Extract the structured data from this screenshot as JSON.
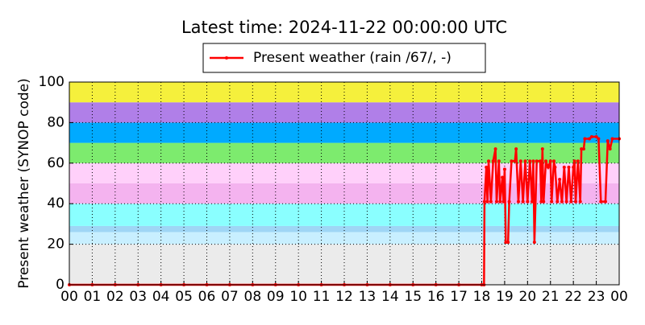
{
  "chart_data": {
    "type": "line",
    "title": "Latest time: 2024-11-22 00:00:00 UTC",
    "y_label": "Present weather (SYNOP code)",
    "xlim": [
      0,
      24
    ],
    "ylim": [
      0,
      100
    ],
    "xticks": [
      {
        "value": 0,
        "label": "00"
      },
      {
        "value": 1,
        "label": "01"
      },
      {
        "value": 2,
        "label": "02"
      },
      {
        "value": 3,
        "label": "03"
      },
      {
        "value": 4,
        "label": "04"
      },
      {
        "value": 5,
        "label": "05"
      },
      {
        "value": 6,
        "label": "06"
      },
      {
        "value": 7,
        "label": "07"
      },
      {
        "value": 8,
        "label": "08"
      },
      {
        "value": 9,
        "label": "09"
      },
      10,
      11,
      12,
      13,
      14,
      15,
      16,
      17,
      18,
      19,
      20,
      21,
      22,
      23,
      {
        "value": 24,
        "label": "00"
      }
    ],
    "yticks": [
      0,
      20,
      40,
      60,
      80,
      100
    ],
    "grid": true,
    "legend": "top",
    "bands": [
      {
        "from": 0,
        "to": 20,
        "color": "#ebebeb"
      },
      {
        "from": 20,
        "to": 26,
        "color": "#c8efff"
      },
      {
        "from": 26,
        "to": 29,
        "color": "#9fd6f5"
      },
      {
        "from": 29,
        "to": 40,
        "color": "#8affff"
      },
      {
        "from": 40,
        "to": 50,
        "color": "#f4b3ef"
      },
      {
        "from": 50,
        "to": 60,
        "color": "#ffd0fa"
      },
      {
        "from": 60,
        "to": 70,
        "color": "#7deb6e"
      },
      {
        "from": 70,
        "to": 80,
        "color": "#00aaff"
      },
      {
        "from": 80,
        "to": 90,
        "color": "#b07fe8"
      },
      {
        "from": 90,
        "to": 100,
        "color": "#f5f03c"
      }
    ],
    "series": [
      {
        "name": "Present weather (rain /67/, -)",
        "color": "#ff0000",
        "x": [
          0,
          1,
          2,
          3,
          4,
          5,
          6,
          7,
          8,
          9,
          10,
          11,
          12,
          13,
          14,
          15,
          16,
          17,
          18,
          18.1,
          18.12,
          18.2,
          18.25,
          18.3,
          18.4,
          18.5,
          18.6,
          18.65,
          18.75,
          18.8,
          18.9,
          18.95,
          19.0,
          19.05,
          19.15,
          19.2,
          19.3,
          19.45,
          19.5,
          19.6,
          19.7,
          19.8,
          19.9,
          20.0,
          20.1,
          20.2,
          20.25,
          20.3,
          20.4,
          20.55,
          20.6,
          20.65,
          20.7,
          20.8,
          20.9,
          21.0,
          21.05,
          21.15,
          21.2,
          21.3,
          21.4,
          21.5,
          21.6,
          21.7,
          21.8,
          21.9,
          22.0,
          22.05,
          22.1,
          22.2,
          22.3,
          22.35,
          22.45,
          22.5,
          22.7,
          22.8,
          23.0,
          23.1,
          23.2,
          23.4,
          23.5,
          23.6,
          23.7,
          24
        ],
        "values": [
          0,
          0,
          0,
          0,
          0,
          0,
          0,
          0,
          0,
          0,
          0,
          0,
          0,
          0,
          0,
          0,
          0,
          0,
          0,
          0,
          41,
          58,
          41,
          61,
          41,
          61,
          67,
          41,
          61,
          41,
          53,
          41,
          57,
          21,
          21,
          41,
          61,
          61,
          67,
          41,
          61,
          41,
          61,
          41,
          61,
          41,
          61,
          21,
          61,
          61,
          41,
          67,
          41,
          61,
          58,
          61,
          41,
          61,
          58,
          41,
          52,
          41,
          58,
          41,
          58,
          41,
          58,
          61,
          41,
          61,
          41,
          67,
          67,
          72,
          72,
          73,
          73,
          72,
          41,
          41,
          71,
          67,
          72,
          72
        ]
      }
    ]
  }
}
